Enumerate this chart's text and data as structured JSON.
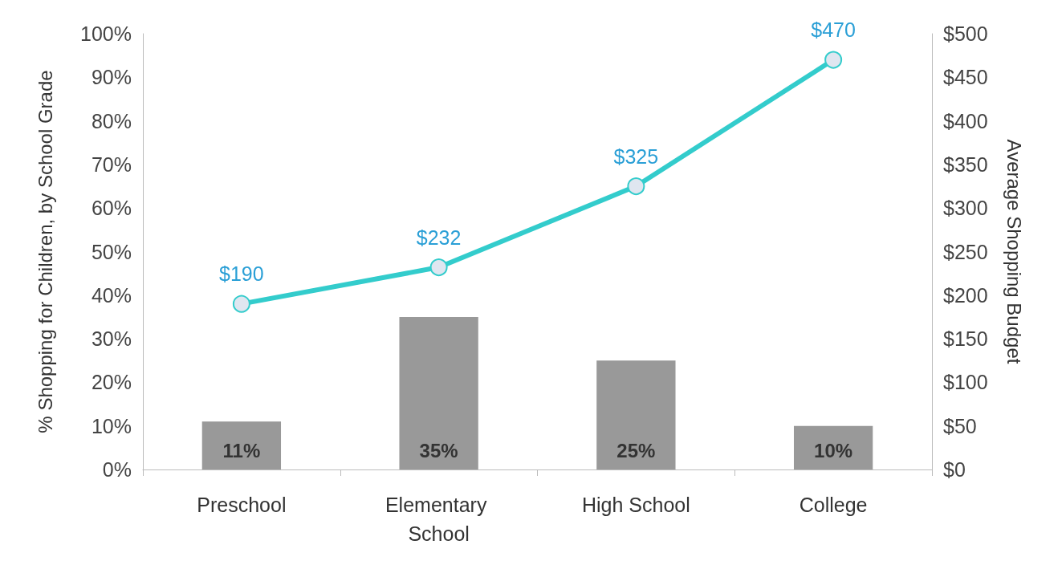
{
  "chart_data": {
    "type": "bar",
    "categories": [
      "Preschool",
      "Elementary School",
      "High School",
      "College"
    ],
    "ylabel": "% Shopping for Children, by School Grade",
    "y2label": "Average Shopping Budget",
    "series": [
      {
        "color": "#999999",
        "values": [
          11,
          35,
          25,
          10
        ],
        "value_labels": [
          "11%",
          "35%",
          "25%",
          "10%"
        ]
      },
      {
        "type": "line",
        "axis": "y2",
        "color": "#33cccc",
        "values": [
          190,
          232,
          325,
          470
        ],
        "value_labels": [
          "$190",
          "$232",
          "$325",
          "$470"
        ],
        "marker": "circle"
      }
    ],
    "ylim": [
      0,
      100
    ],
    "yticks": [
      {
        "value": 0,
        "label": "0%"
      },
      {
        "value": 10,
        "label": "10%"
      },
      {
        "value": 20,
        "label": "20%"
      },
      {
        "value": 30,
        "label": "30%"
      },
      {
        "value": 40,
        "label": "40%"
      },
      {
        "value": 50,
        "label": "50%"
      },
      {
        "value": 60,
        "label": "60%"
      },
      {
        "value": 70,
        "label": "70%"
      },
      {
        "value": 80,
        "label": "80%"
      },
      {
        "value": 90,
        "label": "90%"
      },
      {
        "value": 100,
        "label": "100%"
      }
    ],
    "y2lim": [
      0,
      500
    ],
    "y2ticks": [
      {
        "value": 0,
        "label": "$0"
      },
      {
        "value": 50,
        "label": "$50"
      },
      {
        "value": 100,
        "label": "$100"
      },
      {
        "value": 150,
        "label": "$150"
      },
      {
        "value": 200,
        "label": "$200"
      },
      {
        "value": 250,
        "label": "$250"
      },
      {
        "value": 300,
        "label": "$300"
      },
      {
        "value": 350,
        "label": "$350"
      },
      {
        "value": 400,
        "label": "$400"
      },
      {
        "value": 450,
        "label": "$450"
      },
      {
        "value": 500,
        "label": "$500"
      }
    ],
    "grid": false
  }
}
